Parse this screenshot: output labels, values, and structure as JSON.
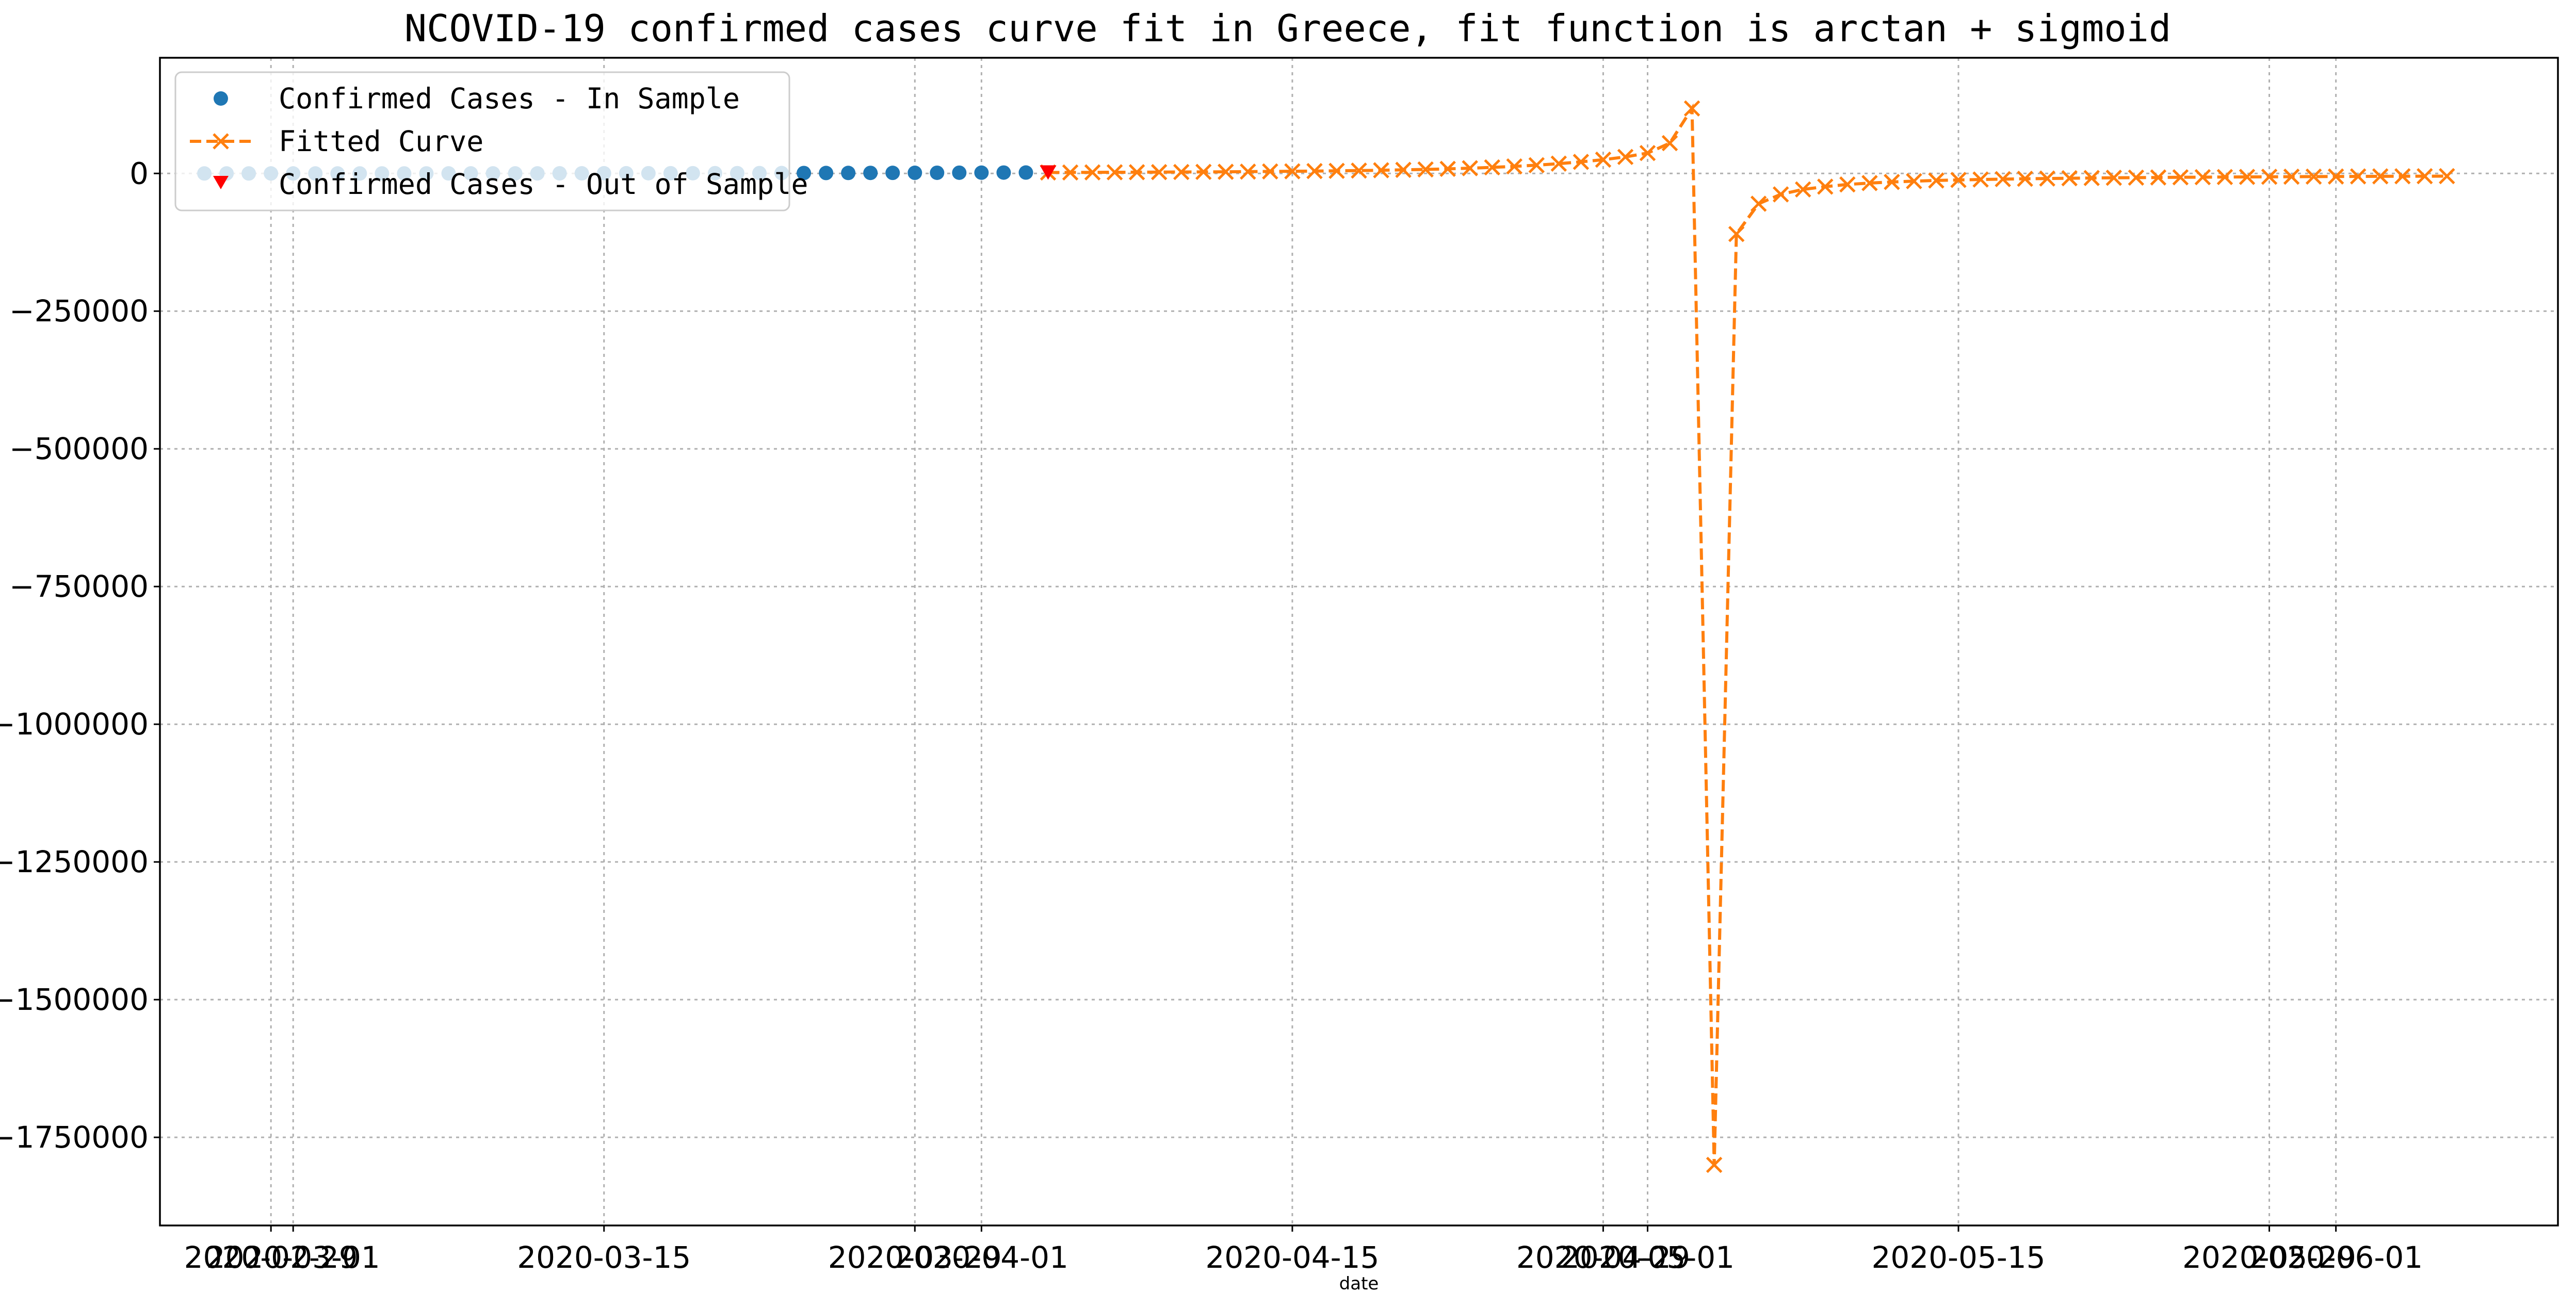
{
  "chart_data": {
    "type": "line",
    "title": "NCOVID-19 confirmed cases curve fit in Greece, fit function is arctan + sigmoid",
    "xlabel": "date",
    "ylabel": "",
    "grid": true,
    "legend_position": "top-left",
    "ylim": [
      -1910000,
      210000
    ],
    "xlim": [
      "2020-02-24",
      "2020-06-11"
    ],
    "y_ticks": [
      0,
      -250000,
      -500000,
      -750000,
      -1000000,
      -1250000,
      -1500000,
      -1750000
    ],
    "y_tick_labels": [
      "0",
      "−250000",
      "−500000",
      "−750000",
      "−1000000",
      "−1250000",
      "−1500000",
      "−1750000"
    ],
    "x_ticks": [
      "2020-02-29",
      "2020-03-01",
      "2020-03-15",
      "2020-03-29",
      "2020-04-01",
      "2020-04-15",
      "2020-04-29",
      "2020-05-01",
      "2020-05-15",
      "2020-05-29",
      "2020-06-01"
    ],
    "x_tick_labels": [
      "2020-02-29",
      "2020-03-01",
      "2020-03-15",
      "2020-03-29",
      "2020-04-01",
      "2020-04-15",
      "2020-04-29",
      "2020-05-01",
      "2020-05-15",
      "2020-05-29",
      "2020-06-01"
    ],
    "series": [
      {
        "name": "Confirmed Cases - In Sample",
        "marker": "circle",
        "color": "#1f77b4",
        "x": [
          "2020-02-26",
          "2020-02-27",
          "2020-02-28",
          "2020-02-29",
          "2020-03-01",
          "2020-03-02",
          "2020-03-03",
          "2020-03-04",
          "2020-03-05",
          "2020-03-06",
          "2020-03-07",
          "2020-03-08",
          "2020-03-09",
          "2020-03-10",
          "2020-03-11",
          "2020-03-12",
          "2020-03-13",
          "2020-03-14",
          "2020-03-15",
          "2020-03-16",
          "2020-03-17",
          "2020-03-18",
          "2020-03-19",
          "2020-03-20",
          "2020-03-21",
          "2020-03-22",
          "2020-03-23",
          "2020-03-24",
          "2020-03-25",
          "2020-03-26",
          "2020-03-27",
          "2020-03-28",
          "2020-03-29",
          "2020-03-30",
          "2020-03-31",
          "2020-04-01",
          "2020-04-02",
          "2020-04-03"
        ],
        "y": [
          1,
          3,
          4,
          7,
          7,
          7,
          7,
          9,
          31,
          45,
          66,
          73,
          73,
          89,
          99,
          117,
          190,
          228,
          331,
          331,
          387,
          418,
          418,
          495,
          530,
          624,
          695,
          743,
          821,
          892,
          966,
          1061,
          1156,
          1212,
          1314,
          1415,
          1544,
          1613
        ]
      },
      {
        "name": "Fitted Curve",
        "marker": "x",
        "linestyle": "dashed",
        "color": "#ff7f0e",
        "x": [
          "2020-04-04",
          "2020-04-05",
          "2020-04-06",
          "2020-04-07",
          "2020-04-08",
          "2020-04-09",
          "2020-04-10",
          "2020-04-11",
          "2020-04-12",
          "2020-04-13",
          "2020-04-14",
          "2020-04-15",
          "2020-04-16",
          "2020-04-17",
          "2020-04-18",
          "2020-04-19",
          "2020-04-20",
          "2020-04-21",
          "2020-04-22",
          "2020-04-23",
          "2020-04-24",
          "2020-04-25",
          "2020-04-26",
          "2020-04-27",
          "2020-04-28",
          "2020-04-29",
          "2020-04-30",
          "2020-05-01",
          "2020-05-02",
          "2020-05-03",
          "2020-05-04",
          "2020-05-05",
          "2020-05-06",
          "2020-05-07",
          "2020-05-08",
          "2020-05-09",
          "2020-05-10",
          "2020-05-11",
          "2020-05-12",
          "2020-05-13",
          "2020-05-14",
          "2020-05-15",
          "2020-05-16",
          "2020-05-17",
          "2020-05-18",
          "2020-05-19",
          "2020-05-20",
          "2020-05-21",
          "2020-05-22",
          "2020-05-23",
          "2020-05-24",
          "2020-05-25",
          "2020-05-26",
          "2020-05-27",
          "2020-05-28",
          "2020-05-29",
          "2020-05-30",
          "2020-05-31",
          "2020-06-01",
          "2020-06-02",
          "2020-06-03",
          "2020-06-04",
          "2020-06-05",
          "2020-06-06"
        ],
        "y": [
          1700,
          1800,
          1950,
          2100,
          2250,
          2400,
          2600,
          2800,
          3000,
          3300,
          3600,
          3900,
          4300,
          4700,
          5200,
          5800,
          6500,
          7300,
          8300,
          9500,
          11000,
          12800,
          15000,
          17800,
          21000,
          25000,
          30000,
          37000,
          55000,
          118000,
          -1800000,
          -110000,
          -55000,
          -38000,
          -29000,
          -24000,
          -20000,
          -17500,
          -15500,
          -14000,
          -12800,
          -11800,
          -11000,
          -10300,
          -9700,
          -9200,
          -8700,
          -8300,
          -7900,
          -7600,
          -7300,
          -7000,
          -6750,
          -6500,
          -6300,
          -6100,
          -5900,
          -5700,
          -5550,
          -5400,
          -5250,
          -5100,
          -5000,
          -4900
        ]
      },
      {
        "name": "Confirmed Cases - Out of Sample",
        "marker": "triangle-down",
        "color": "#ff0000",
        "x": [
          "2020-04-04"
        ],
        "y": [
          1673
        ]
      }
    ]
  }
}
